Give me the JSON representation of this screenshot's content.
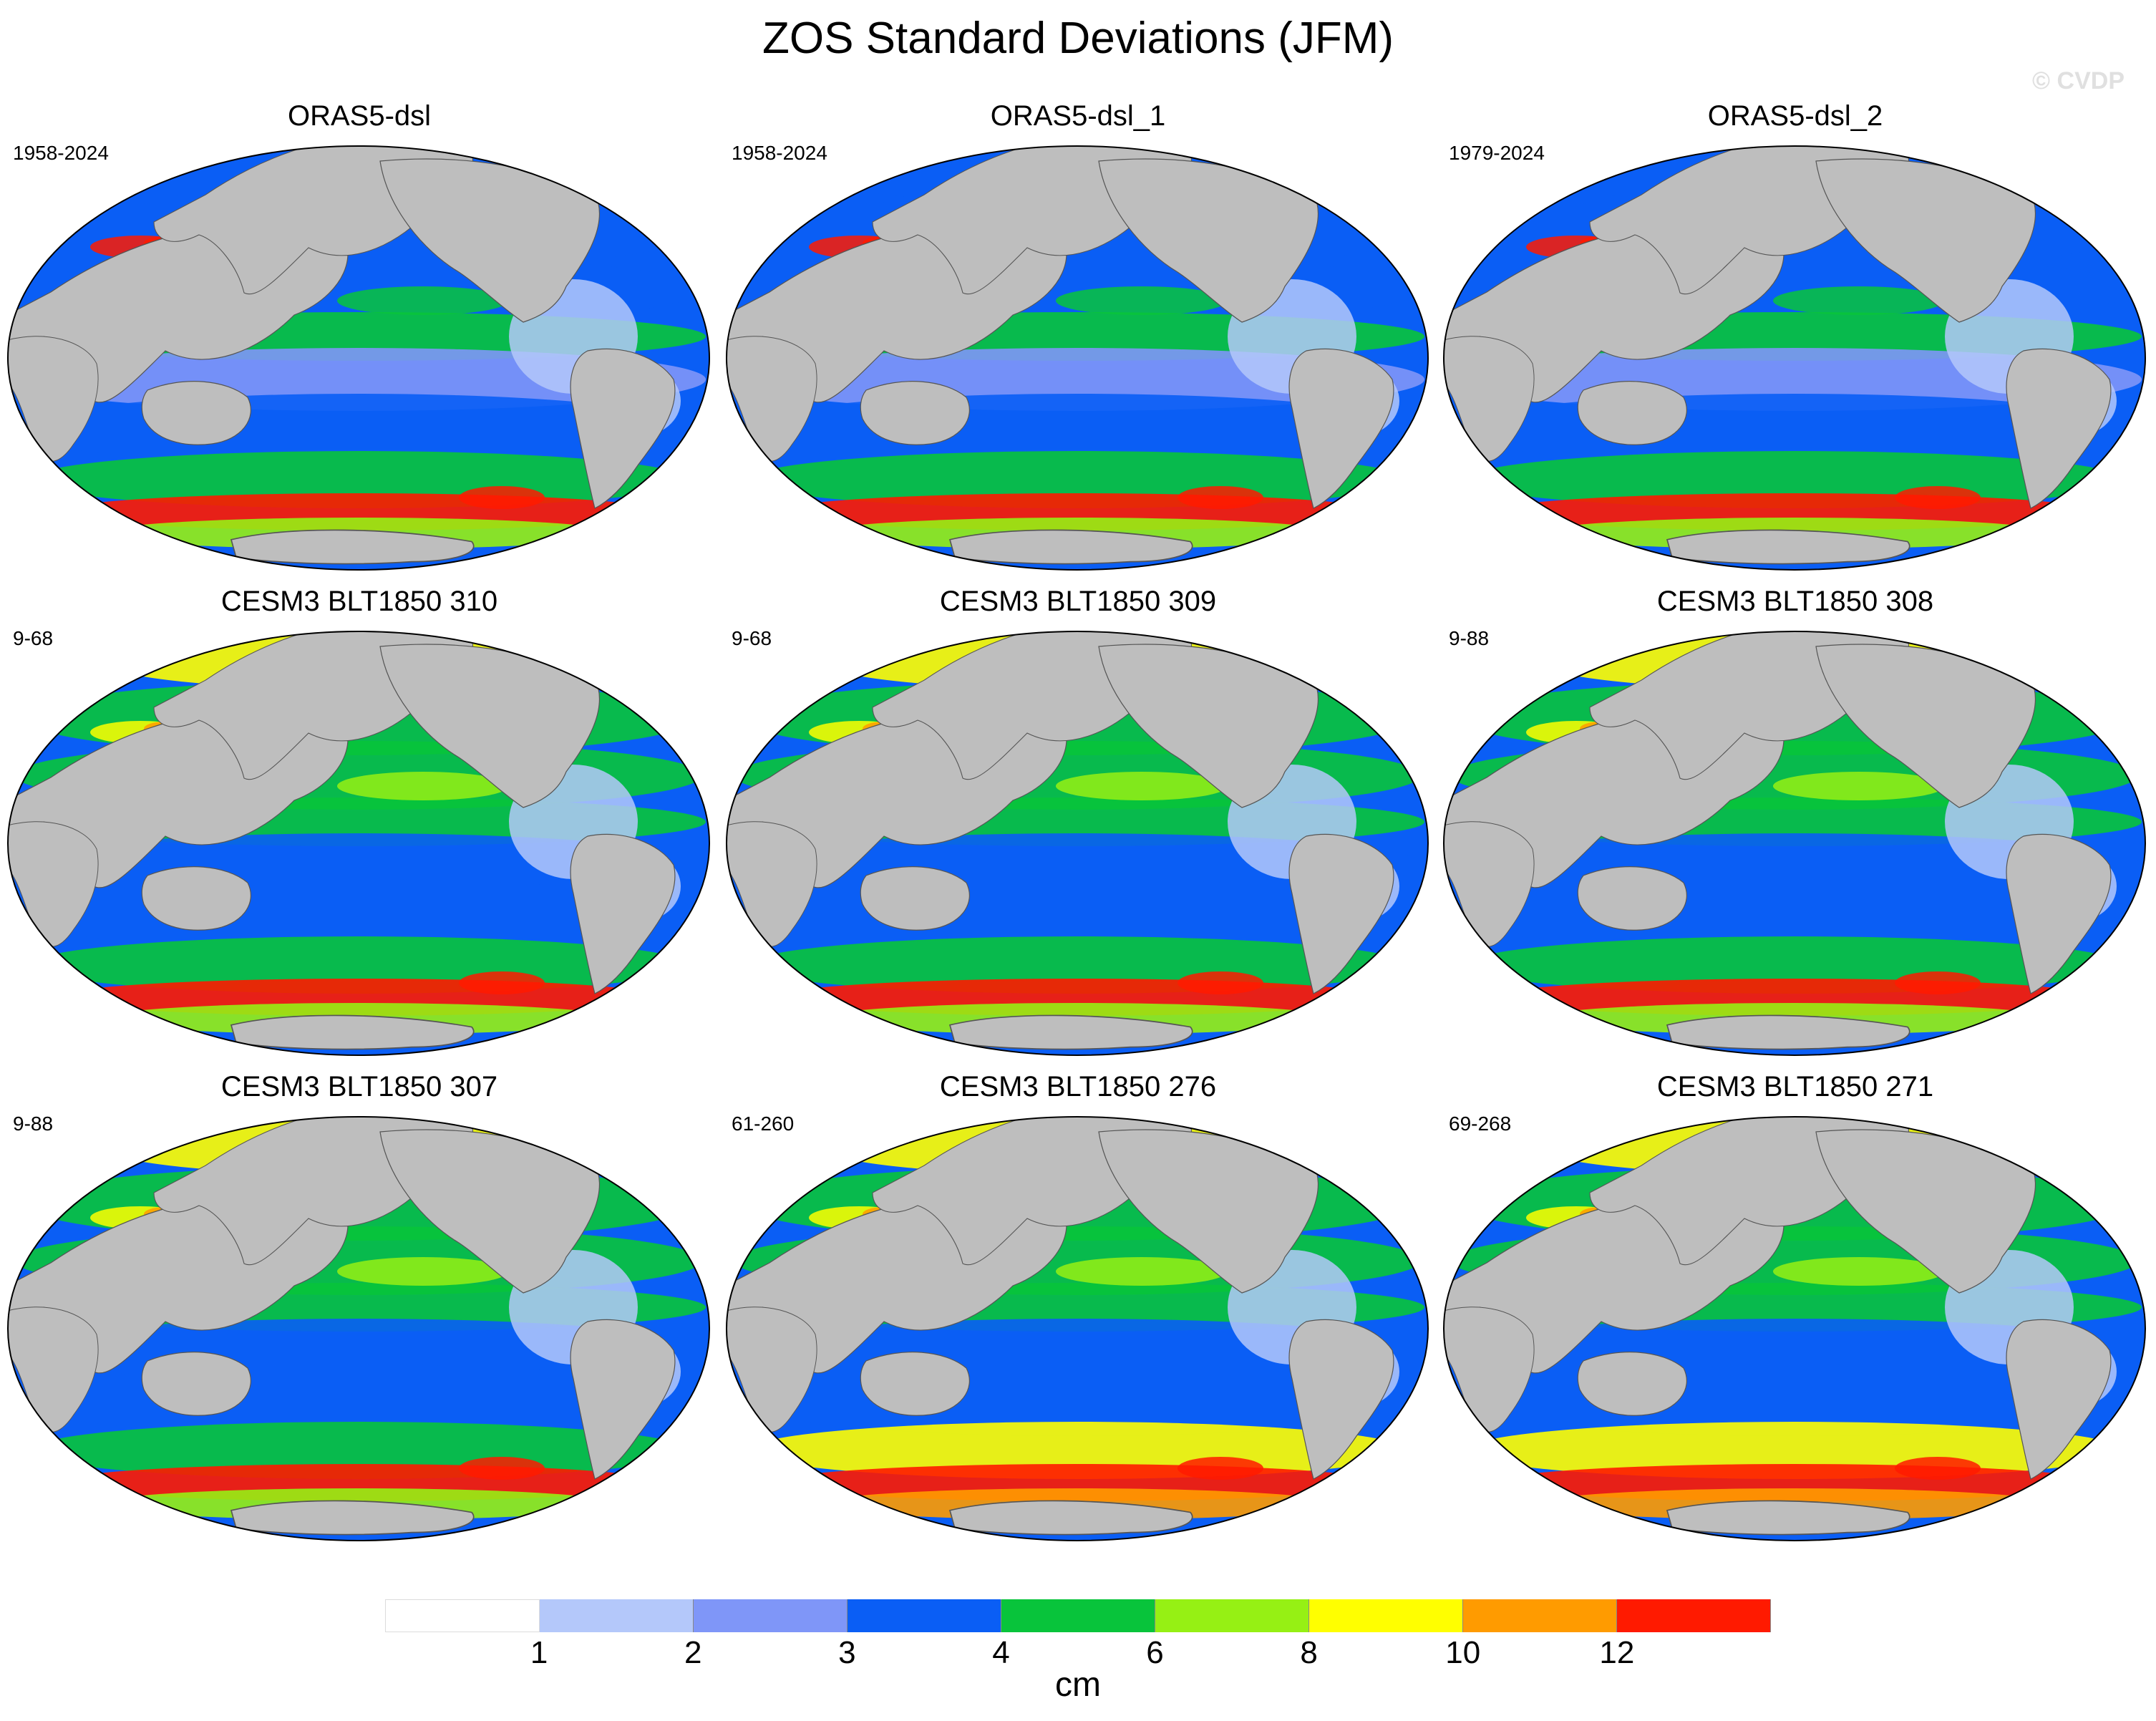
{
  "title": "ZOS Standard Deviations (JFM)",
  "watermark": "© CVDP",
  "chart_data": {
    "type": "heatmap",
    "variable": "ZOS standard deviation",
    "season": "JFM",
    "projection": "robinson",
    "panels": [
      {
        "title": "ORAS5-dsl",
        "years": "1958-2024"
      },
      {
        "title": "ORAS5-dsl_1",
        "years": "1958-2024"
      },
      {
        "title": "ORAS5-dsl_2",
        "years": "1979-2024"
      },
      {
        "title": "CESM3 BLT1850 310",
        "years": "9-68"
      },
      {
        "title": "CESM3 BLT1850 309",
        "years": "9-68"
      },
      {
        "title": "CESM3 BLT1850 308",
        "years": "9-88"
      },
      {
        "title": "CESM3 BLT1850 307",
        "years": "9-88"
      },
      {
        "title": "CESM3 BLT1850 276",
        "years": "61-260"
      },
      {
        "title": "CESM3 BLT1850 271",
        "years": "69-268"
      }
    ],
    "colorbar": {
      "units": "cm",
      "labels": [
        "1",
        "2",
        "3",
        "4",
        "6",
        "8",
        "10",
        "12"
      ],
      "colors": [
        "#ffffff",
        "#b4c8fa",
        "#7f96f8",
        "#0a5ef5",
        "#08c43b",
        "#96f014",
        "#ffff00",
        "#ff9b00",
        "#ff1a00"
      ]
    },
    "land_color": "#bebebe"
  }
}
